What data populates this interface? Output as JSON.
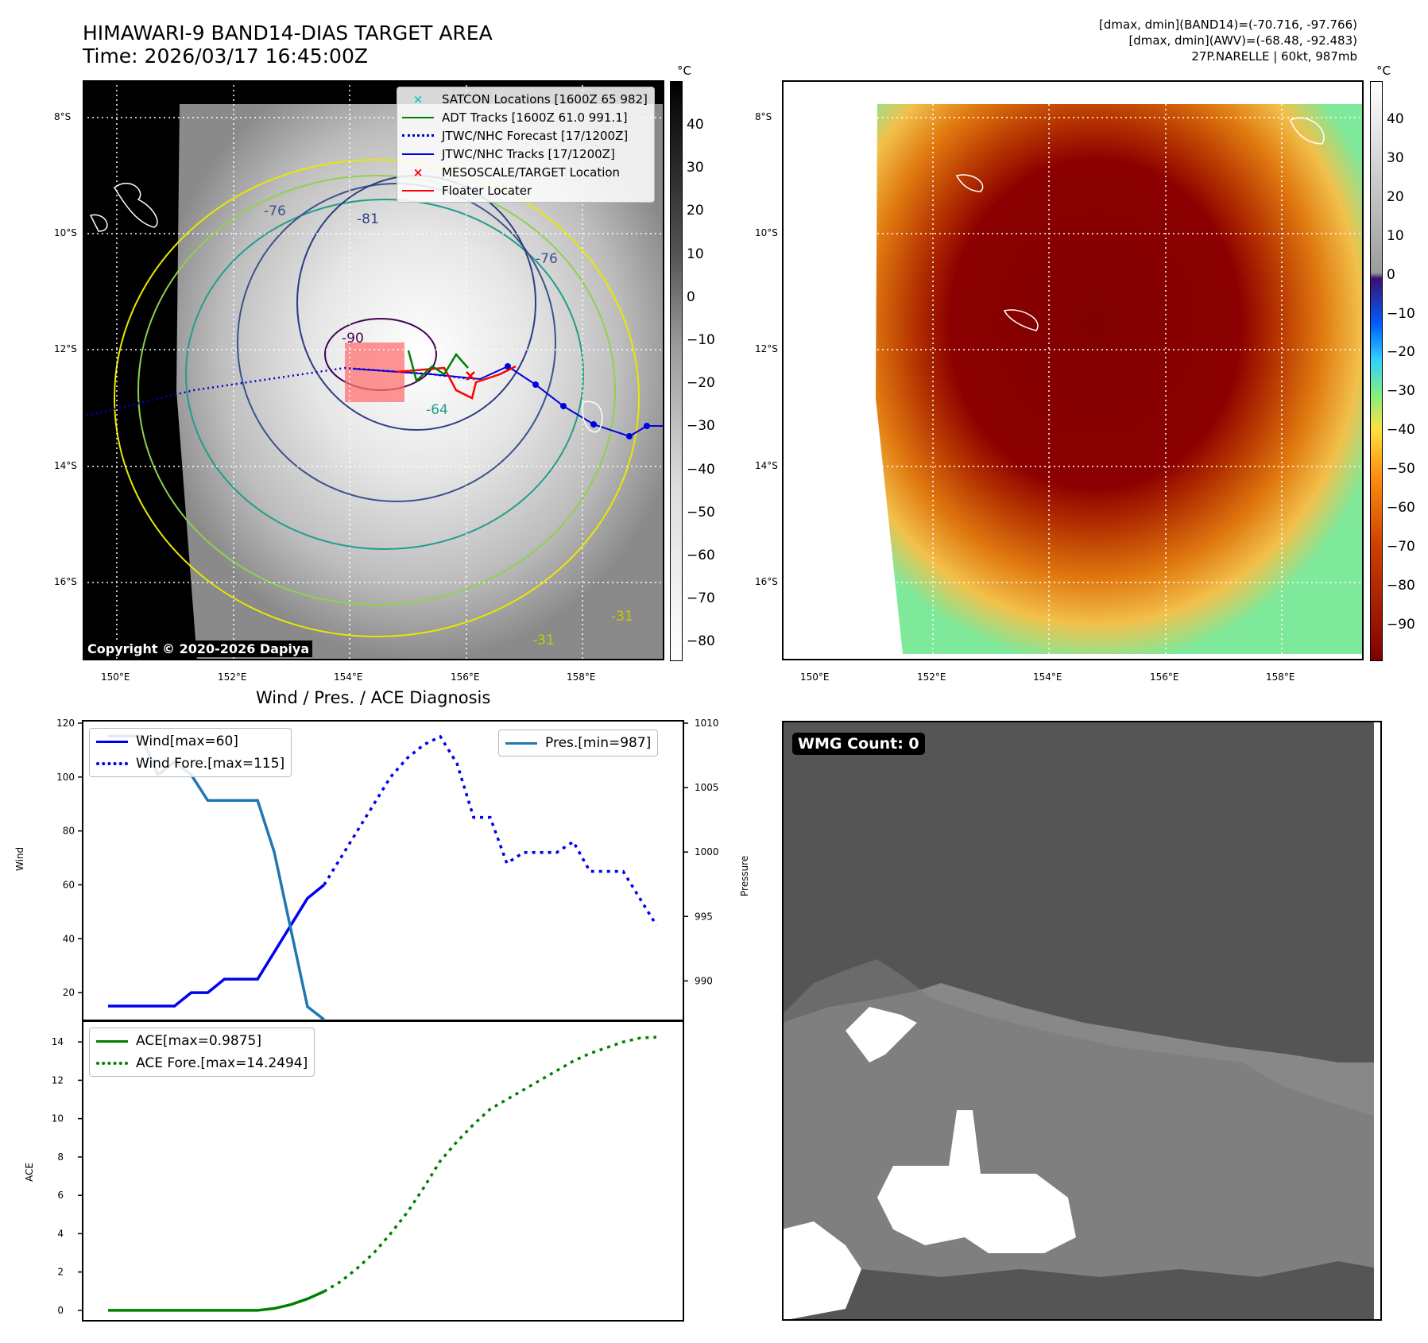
{
  "header": {
    "title_line1": "HIMAWARI-9 BAND14-DIAS TARGET AREA",
    "title_line2": "Time: 2026/03/17 16:45:00Z",
    "info_line1": "[dmax, dmin](BAND14)=(-70.716, -97.766)",
    "info_line2": "[dmax, dmin](AWV)=(-68.48, -92.483)",
    "info_line3": "27P.NARELLE | 60kt, 987mb"
  },
  "map_axes": {
    "lat_labels": [
      "8°S",
      "10°S",
      "12°S",
      "14°S",
      "16°S"
    ],
    "lon_labels": [
      "150°E",
      "152°E",
      "154°E",
      "156°E",
      "158°E"
    ]
  },
  "ir_colorbar": {
    "unit": "°C",
    "ticks": [
      "40",
      "30",
      "20",
      "10",
      "0",
      "−10",
      "−20",
      "−30",
      "−40",
      "−50",
      "−60",
      "−70",
      "−80"
    ]
  },
  "color_colorbar": {
    "unit": "°C",
    "ticks": [
      "40",
      "30",
      "20",
      "10",
      "0",
      "−10",
      "−20",
      "−30",
      "−40",
      "−50",
      "−60",
      "−70",
      "−80",
      "−90"
    ]
  },
  "map_legend": {
    "items": [
      {
        "label": "SATCON Locations [1600Z 65 982]",
        "color": "#1ec8c8"
      },
      {
        "label": "ADT Tracks [1600Z 61.0 991.1]",
        "color": "#008000"
      },
      {
        "label": "JTWC/NHC Forecast [17/1200Z]",
        "color": "#0000cc"
      },
      {
        "label": "JTWC/NHC Tracks [17/1200Z]",
        "color": "#0000dd"
      },
      {
        "label": "MESOSCALE/TARGET Location",
        "color": "#ff0000"
      },
      {
        "label": "Floater Locater",
        "color": "#ff0000"
      }
    ]
  },
  "contour_labels": [
    "-90",
    "-76",
    "-81",
    "-76",
    "-64",
    "-31",
    "-31"
  ],
  "copyright": "Copyright © 2020-2026 Dapiya",
  "wmg": {
    "label": "WMG Count: 0"
  },
  "diagnosis": {
    "title": "Wind / Pres. / ACE Diagnosis"
  },
  "chart_data": [
    {
      "type": "line",
      "title": "Wind / Pres. / ACE Diagnosis",
      "ylabel": "Wind",
      "ylabel_right": "Pressure",
      "ylim": [
        10,
        120
      ],
      "ylim_right": [
        987,
        1010
      ],
      "yticks": [
        20,
        40,
        60,
        80,
        100,
        120
      ],
      "yticks_right": [
        990,
        995,
        1000,
        1005,
        1010
      ],
      "legend_left": [
        "Wind[max=60]",
        "Wind Fore.[max=115]"
      ],
      "legend_right": [
        "Pres.[min=987]"
      ],
      "series": [
        {
          "name": "Wind[max=60]",
          "style": "solid",
          "color": "#0000ee",
          "axis": "left",
          "x": [
            0,
            1,
            2,
            3,
            4,
            5,
            6,
            7,
            8,
            9,
            10,
            11,
            12,
            13
          ],
          "values": [
            15,
            15,
            15,
            15,
            15,
            20,
            20,
            25,
            25,
            25,
            35,
            45,
            55,
            60
          ]
        },
        {
          "name": "Wind Fore.[max=115]",
          "style": "dotted",
          "color": "#0000ee",
          "axis": "left",
          "x": [
            13,
            14,
            15,
            16,
            17,
            18,
            19,
            20,
            21,
            22,
            23,
            24,
            25,
            26,
            27,
            28,
            29,
            30,
            31,
            32,
            33
          ],
          "values": [
            60,
            70,
            80,
            90,
            100,
            107,
            112,
            115,
            105,
            85,
            85,
            68,
            72,
            72,
            72,
            76,
            65,
            65,
            65,
            55,
            45
          ]
        },
        {
          "name": "Pres.[min=987]",
          "style": "solid",
          "color": "#1f77b4",
          "axis": "right",
          "x": [
            0,
            1,
            2,
            3,
            4,
            5,
            6,
            7,
            8,
            9,
            10,
            11,
            12,
            13
          ],
          "values": [
            1009,
            1009,
            1009,
            1006,
            1007,
            1006,
            1004,
            1004,
            1004,
            1004,
            1000,
            994,
            988,
            987
          ]
        }
      ]
    },
    {
      "type": "line",
      "ylabel": "ACE",
      "ylim": [
        -0.5,
        15
      ],
      "yticks": [
        0,
        2,
        4,
        6,
        8,
        10,
        12,
        14
      ],
      "legend": [
        "ACE[max=0.9875]",
        "ACE Fore.[max=14.2494]"
      ],
      "series": [
        {
          "name": "ACE[max=0.9875]",
          "style": "solid",
          "color": "#008000",
          "x": [
            0,
            1,
            2,
            3,
            4,
            5,
            6,
            7,
            8,
            9,
            10,
            11,
            12,
            13
          ],
          "values": [
            0,
            0,
            0,
            0,
            0,
            0,
            0,
            0,
            0,
            0,
            0.1,
            0.3,
            0.6,
            0.9875
          ]
        },
        {
          "name": "ACE Fore.[max=14.2494]",
          "style": "dotted",
          "color": "#008000",
          "x": [
            13,
            14,
            15,
            16,
            17,
            18,
            19,
            20,
            21,
            22,
            23,
            24,
            25,
            26,
            27,
            28,
            29,
            30,
            31,
            32,
            33
          ],
          "values": [
            0.9875,
            1.5,
            2.2,
            3.0,
            4.0,
            5.1,
            6.4,
            7.8,
            8.8,
            9.7,
            10.5,
            11.0,
            11.5,
            12.0,
            12.5,
            13.0,
            13.4,
            13.7,
            14.0,
            14.2,
            14.2494
          ]
        }
      ]
    }
  ]
}
